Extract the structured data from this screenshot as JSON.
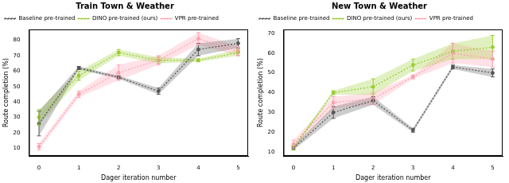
{
  "chart_data": [
    {
      "type": "line",
      "title": "Train Town & Weather",
      "x_label": "Dager iteration number",
      "y_label": "Route completion (%)",
      "x": [
        0,
        1,
        2,
        3,
        4,
        5
      ],
      "xlim": [
        -0.25,
        5.25
      ],
      "xticks": [
        0,
        1,
        2,
        3,
        4,
        5
      ],
      "ylim": [
        5,
        87
      ],
      "yticks": [
        10,
        20,
        30,
        40,
        50,
        60,
        70,
        80
      ],
      "grid": false,
      "legend": "upper left",
      "series": [
        {
          "name": "Baseline pre-trained",
          "color": "#555555",
          "marker": "circle",
          "line_style": "dotted",
          "values": [
            26,
            62,
            56,
            47,
            74,
            78
          ],
          "errors": [
            8,
            1,
            1,
            2,
            4,
            3
          ]
        },
        {
          "name": "DINO pre-trained (ours)",
          "color": "#9acd32",
          "marker": "circle",
          "line_style": "dotted",
          "values": [
            30,
            57,
            72,
            67,
            67,
            72
          ],
          "errors": [
            5,
            3,
            2,
            2,
            1,
            2
          ]
        },
        {
          "name": "VPR pre-trained",
          "color": "#ff9fb0",
          "marker": "circle",
          "line_style": "dotted",
          "values": [
            11,
            45,
            59,
            67,
            81,
            73
          ],
          "errors": [
            2,
            2,
            5,
            3,
            4,
            3
          ]
        }
      ]
    },
    {
      "type": "line",
      "title": "New Town & Weather",
      "x_label": "Dager iteration number",
      "y_label": "Route completion (%)",
      "x": [
        0,
        1,
        2,
        3,
        4,
        5
      ],
      "xlim": [
        -0.25,
        5.25
      ],
      "xticks": [
        0,
        1,
        2,
        3,
        4,
        5
      ],
      "ylim": [
        8,
        72
      ],
      "yticks": [
        10,
        20,
        30,
        40,
        50,
        60,
        70
      ],
      "grid": false,
      "legend": "upper left",
      "series": [
        {
          "name": "Baseline pre-trained",
          "color": "#555555",
          "marker": "circle",
          "line_style": "dotted",
          "values": [
            12,
            30,
            36,
            21,
            53,
            50
          ],
          "errors": [
            1,
            3,
            2,
            1,
            1,
            2
          ]
        },
        {
          "name": "DINO pre-trained (ours)",
          "color": "#9acd32",
          "marker": "circle",
          "line_style": "dotted",
          "values": [
            12,
            40,
            43,
            54,
            61,
            63
          ],
          "errors": [
            1,
            1,
            4,
            3,
            4,
            6
          ]
        },
        {
          "name": "VPR pre-trained",
          "color": "#ff9fb0",
          "marker": "circle",
          "line_style": "dotted",
          "values": [
            14,
            35,
            37,
            48,
            60,
            57
          ],
          "errors": [
            2,
            3,
            3,
            1,
            5,
            4
          ]
        }
      ]
    }
  ]
}
